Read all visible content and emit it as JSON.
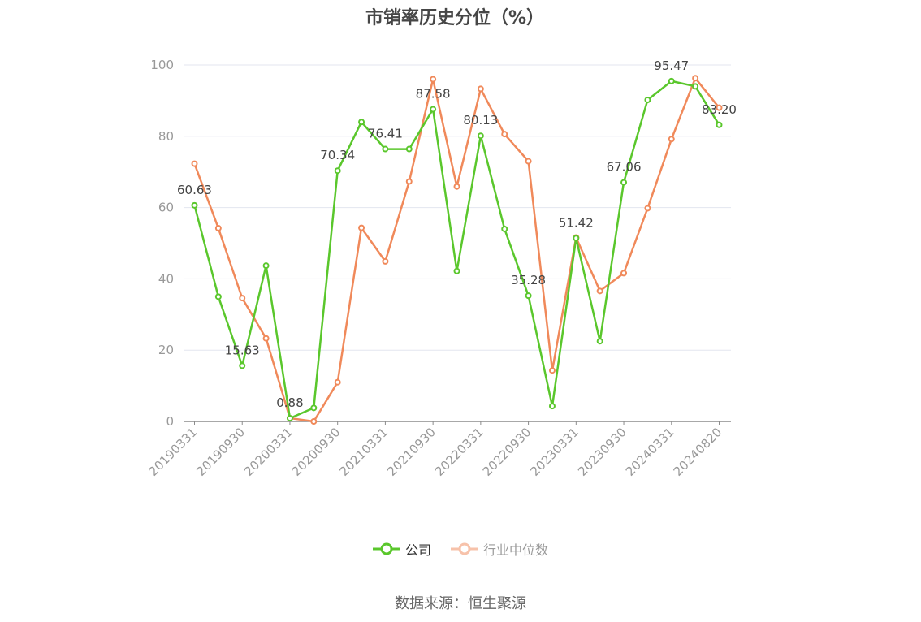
{
  "title": "市销率历史分位（%）",
  "source_note": "数据来源：恒生聚源",
  "colors": {
    "company": "#5ac72c",
    "industry": "#f0895a",
    "grid": "#e3e6ef",
    "axis": "#8c8c8c"
  },
  "chart_data": {
    "type": "line",
    "title": "市销率历史分位（%）",
    "xlabel": "",
    "ylabel": "",
    "ylim": [
      0,
      100
    ],
    "yticks": [
      0,
      20,
      40,
      60,
      80,
      100
    ],
    "grid": true,
    "legend_position": "bottom-center",
    "x": [
      "20190331",
      "20190630",
      "20190930",
      "20191231",
      "20200331",
      "20200630",
      "20200930",
      "20201231",
      "20210331",
      "20210630",
      "20210930",
      "20211231",
      "20220331",
      "20220630",
      "20220930",
      "20221231",
      "20230331",
      "20230630",
      "20230930",
      "20231231",
      "20240331",
      "20240630",
      "20240820"
    ],
    "xtick_labels": [
      "20190331",
      "20190930",
      "20200331",
      "20200930",
      "20210331",
      "20210930",
      "20220331",
      "20220930",
      "20230331",
      "20230930",
      "20240331",
      "20240820"
    ],
    "xtick_indices": [
      0,
      2,
      4,
      6,
      8,
      10,
      12,
      14,
      16,
      18,
      20,
      22
    ],
    "series": [
      {
        "name": "公司",
        "color": "#5ac72c",
        "values": [
          60.63,
          35.0,
          15.63,
          43.7,
          0.88,
          3.8,
          70.34,
          84.0,
          76.41,
          76.41,
          87.58,
          42.2,
          80.13,
          54.0,
          35.28,
          4.3,
          51.42,
          22.5,
          67.06,
          90.2,
          95.47,
          94.0,
          83.2
        ]
      },
      {
        "name": "行业中位数",
        "color": "#f0895a",
        "values": [
          72.3,
          54.2,
          34.6,
          23.3,
          0.9,
          0.0,
          11.0,
          54.3,
          44.9,
          67.3,
          96.0,
          65.9,
          93.3,
          80.6,
          73.0,
          14.3,
          51.6,
          36.6,
          41.6,
          59.8,
          79.2,
          96.3,
          88.0
        ]
      }
    ],
    "data_labels": [
      {
        "index": 0,
        "text": "60.63"
      },
      {
        "index": 2,
        "text": "15.63"
      },
      {
        "index": 4,
        "text": "0.88"
      },
      {
        "index": 6,
        "text": "70.34"
      },
      {
        "index": 8,
        "text": "76.41"
      },
      {
        "index": 10,
        "text": "87.58"
      },
      {
        "index": 12,
        "text": "80.13"
      },
      {
        "index": 14,
        "text": "35.28"
      },
      {
        "index": 16,
        "text": "51.42"
      },
      {
        "index": 18,
        "text": "67.06"
      },
      {
        "index": 20,
        "text": "95.47"
      },
      {
        "index": 22,
        "text": "83.20"
      }
    ]
  }
}
